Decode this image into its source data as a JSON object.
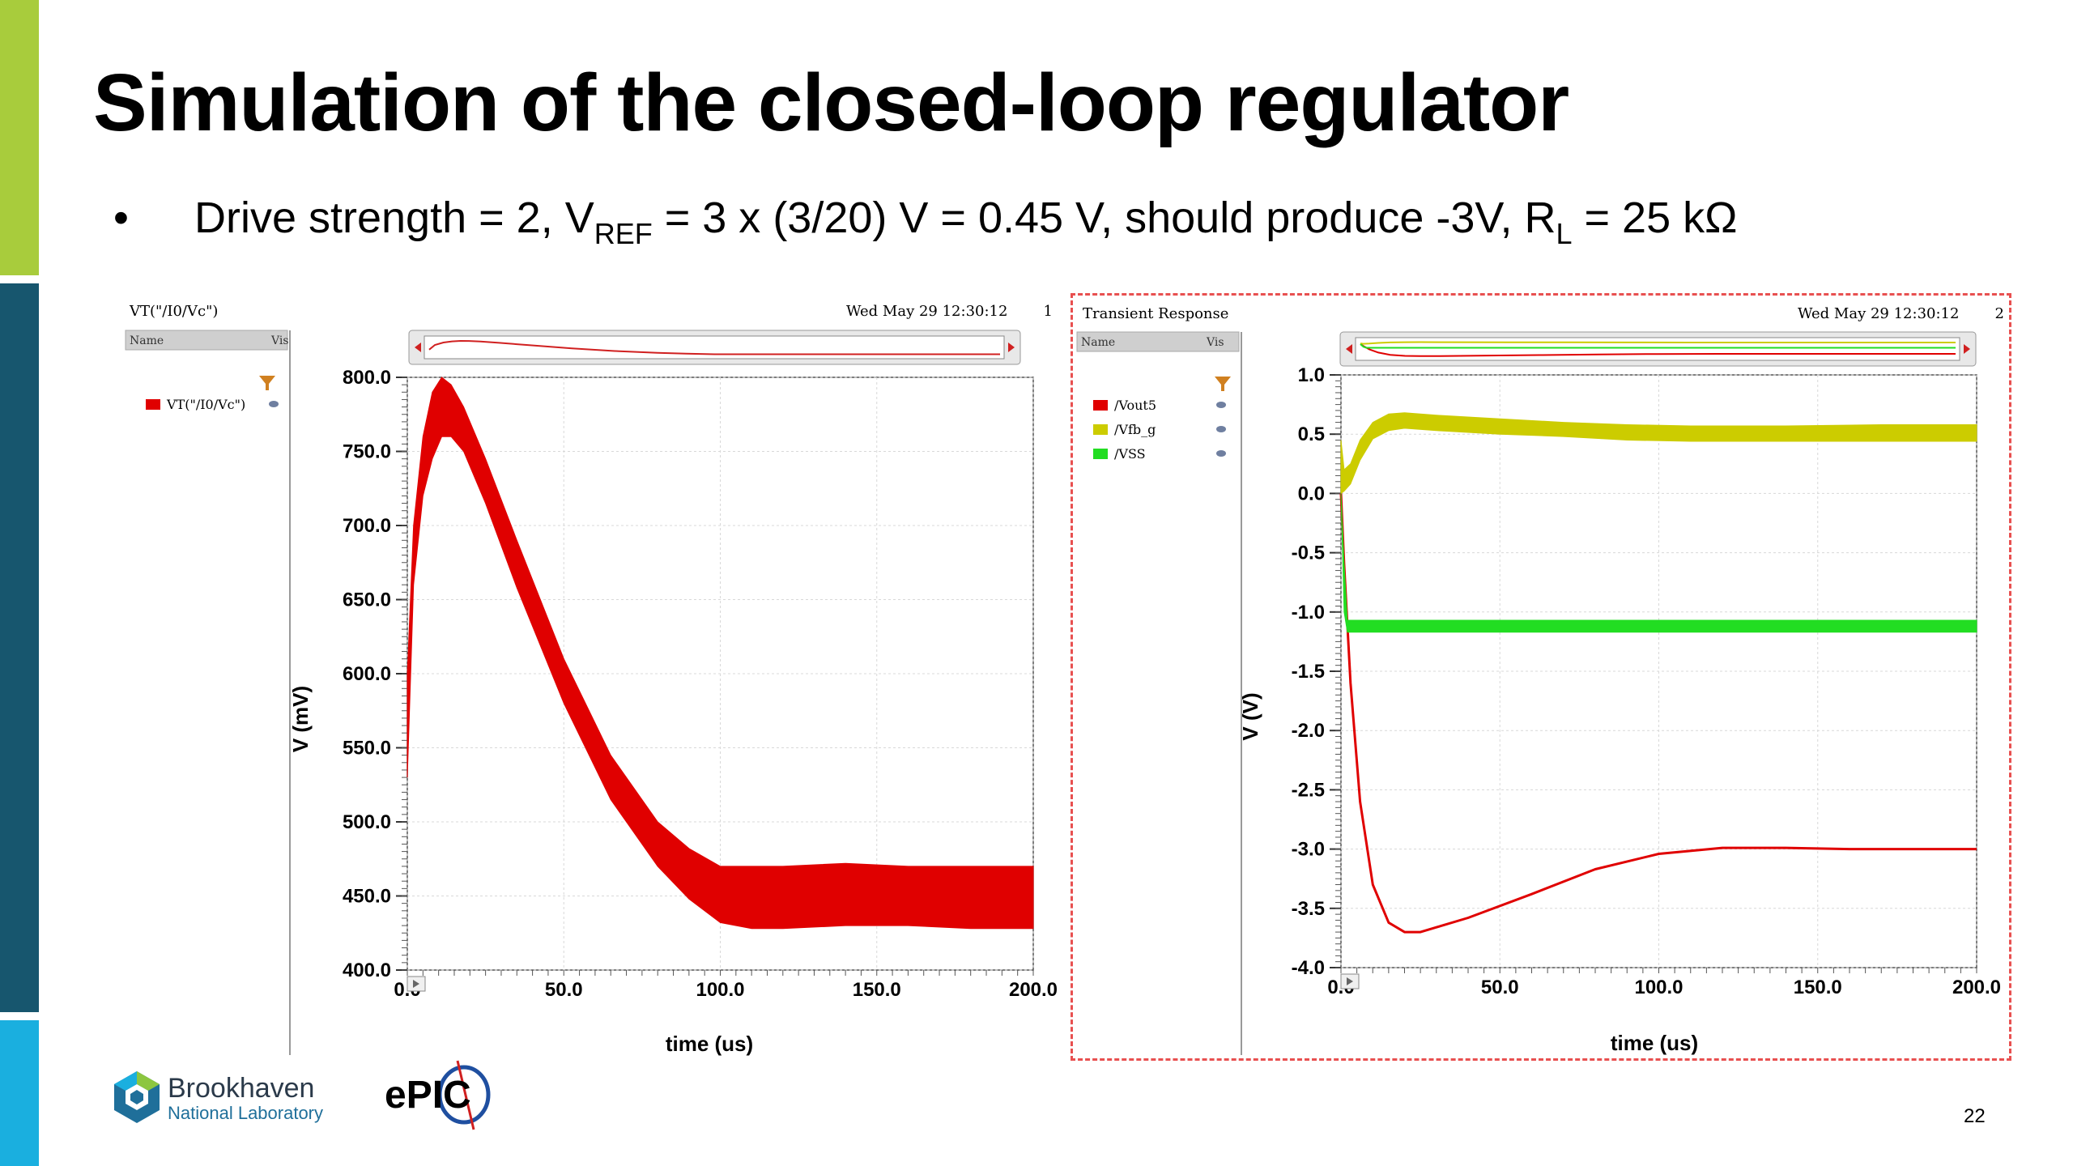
{
  "slide": {
    "title": "Simulation of the closed-loop regulator",
    "bullet": {
      "dot": "•",
      "text_a": "Drive strength = 2, V",
      "sub_ref": "REF",
      "text_b": " = 3 x (3/20) V = 0.45 V, should produce -3V, R",
      "sub_l": "L",
      "text_c": " = 25 kΩ"
    },
    "page_number": "22",
    "side_bar_colors": [
      "#a8cc3c",
      "#17566e",
      "#1aafdf"
    ]
  },
  "logos": {
    "brookhaven": {
      "name": "Brookhaven",
      "sub": "National Laboratory"
    },
    "epic": "ePIC"
  },
  "panels": [
    {
      "window_title": "VT(\"/I0/Vc\")",
      "timestamp": "Wed May 29 12:30:12",
      "window_index": "1",
      "list_header": {
        "name": "Name",
        "vis": "Vis"
      },
      "legend": [
        {
          "label": "VT(\"/I0/Vc\")",
          "color": "#e00000"
        }
      ]
    },
    {
      "window_title": "Transient Response",
      "timestamp": "Wed May 29 12:30:12",
      "window_index": "2",
      "list_header": {
        "name": "Name",
        "vis": "Vis"
      },
      "legend": [
        {
          "label": "/Vout5",
          "color": "#e00000"
        },
        {
          "label": "/Vfb_g",
          "color": "#cccc00"
        },
        {
          "label": "/VSS",
          "color": "#22dd22"
        }
      ]
    }
  ],
  "chart_data": [
    {
      "type": "line",
      "title": "",
      "xlabel": "time (us)",
      "ylabel": "V (mV)",
      "xlim": [
        0,
        200
      ],
      "ylim": [
        400,
        800
      ],
      "x_ticks": [
        "0.0",
        "50.0",
        "100.0",
        "150.0",
        "200.0"
      ],
      "y_ticks": [
        "400.0",
        "450.0",
        "500.0",
        "550.0",
        "600.0",
        "650.0",
        "700.0",
        "750.0",
        "800.0"
      ],
      "grid": true,
      "series": [
        {
          "name": "VT(\"/I0/Vc\")",
          "color": "#e00000",
          "band": true,
          "x": [
            0,
            2,
            5,
            8,
            11,
            14,
            18,
            25,
            35,
            50,
            65,
            80,
            90,
            100,
            110,
            120,
            140,
            160,
            180,
            200
          ],
          "upper": [
            600,
            700,
            760,
            790,
            800,
            795,
            780,
            745,
            690,
            610,
            545,
            500,
            482,
            470,
            470,
            470,
            472,
            470,
            470,
            470
          ],
          "lower": [
            530,
            660,
            720,
            745,
            760,
            760,
            750,
            715,
            658,
            580,
            515,
            470,
            448,
            432,
            428,
            428,
            430,
            430,
            428,
            428
          ]
        }
      ]
    },
    {
      "type": "line",
      "title": "",
      "xlabel": "time (us)",
      "ylabel": "V (V)",
      "xlim": [
        0,
        200
      ],
      "ylim": [
        -4.0,
        1.0
      ],
      "x_ticks": [
        "0.0",
        "50.0",
        "100.0",
        "150.0",
        "200.0"
      ],
      "y_ticks": [
        "1.0",
        "0.5",
        "0.0",
        "-0.5",
        "-1.0",
        "-1.5",
        "-2.0",
        "-2.5",
        "-3.0",
        "-3.5",
        "-4.0"
      ],
      "grid": true,
      "series": [
        {
          "name": "/Vout5",
          "color": "#e00000",
          "x": [
            0,
            1,
            3,
            6,
            10,
            15,
            20,
            25,
            30,
            40,
            60,
            80,
            100,
            120,
            140,
            160,
            180,
            200
          ],
          "y": [
            0.0,
            -0.6,
            -1.6,
            -2.6,
            -3.3,
            -3.62,
            -3.7,
            -3.7,
            -3.66,
            -3.58,
            -3.38,
            -3.17,
            -3.04,
            -2.99,
            -2.99,
            -3.0,
            -3.0,
            -3.0
          ]
        },
        {
          "name": "/Vfb_g",
          "color": "#cccc00",
          "band": true,
          "x": [
            0,
            1,
            3,
            6,
            10,
            15,
            20,
            30,
            50,
            70,
            90,
            110,
            140,
            170,
            200
          ],
          "upper": [
            0.45,
            0.2,
            0.25,
            0.45,
            0.6,
            0.67,
            0.68,
            0.66,
            0.63,
            0.6,
            0.58,
            0.57,
            0.57,
            0.58,
            0.58
          ],
          "lower": [
            0.0,
            0.02,
            0.08,
            0.28,
            0.46,
            0.53,
            0.55,
            0.53,
            0.5,
            0.48,
            0.45,
            0.44,
            0.44,
            0.44,
            0.44
          ]
        },
        {
          "name": "/VSS",
          "color": "#22dd22",
          "band": true,
          "x": [
            0,
            1,
            2,
            3,
            50,
            100,
            150,
            200
          ],
          "upper": [
            0.0,
            -0.6,
            -1.07,
            -1.07,
            -1.07,
            -1.07,
            -1.07,
            -1.07
          ],
          "lower": [
            0.0,
            -1.0,
            -1.17,
            -1.17,
            -1.17,
            -1.17,
            -1.17,
            -1.17
          ]
        }
      ]
    }
  ]
}
